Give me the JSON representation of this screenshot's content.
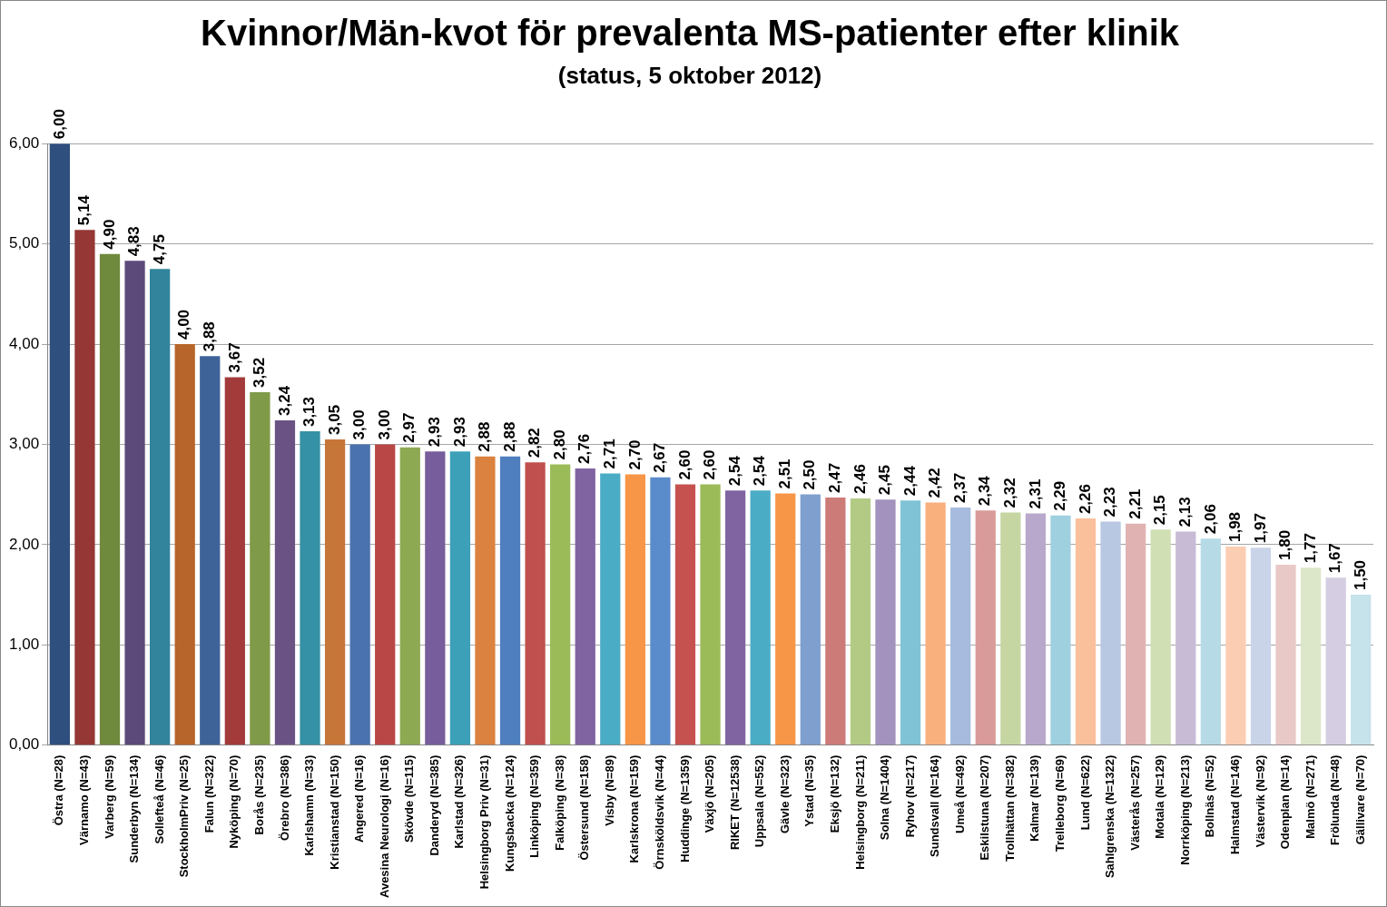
{
  "chart_data": {
    "type": "bar",
    "title": "Kvinnor/Män-kvot för prevalenta MS-patienter efter klinik",
    "subtitle": "(status, 5 oktober 2012)",
    "categories": [
      "Östra (N=28)",
      "Värnamo (N=43)",
      "Varberg (N=59)",
      "Sunderbyn (N=134)",
      "Sollefteå (N=46)",
      "StockholmPriv (N=25)",
      "Falun (N=322)",
      "Nyköping (N=70)",
      "Borås (N=235)",
      "Örebro (N=386)",
      "Karlshamn (N=33)",
      "Kristianstad (N=150)",
      "Angered (N=16)",
      "Avesina Neurologi (N=16)",
      "Skövde (N=115)",
      "Danderyd (N=385)",
      "Karlstad (N=326)",
      "Helsingborg Priv (N=31)",
      "Kungsbacka (N=124)",
      "Linköping (N=359)",
      "Falköping (N=38)",
      "Östersund (N=158)",
      "Visby (N=89)",
      "Karlskrona (N=159)",
      "Örnsköldsvik (N=44)",
      "Huddinge (N=1359)",
      "Växjö (N=205)",
      "RIKET (N=12538)",
      "Uppsala (N=552)",
      "Gävle (N=323)",
      "Ystad (N=35)",
      "Eksjö (N=132)",
      "Helsingborg (N=211)",
      "Solna (N=1404)",
      "Ryhov (N=217)",
      "Sundsvall (N=164)",
      "Umeå (N=492)",
      "Eskilstuna (N=207)",
      "Trollhättan (N=382)",
      "Kalmar (N=139)",
      "Trelleborg (N=69)",
      "Lund (N=622)",
      "Sahlgrenska (N=1322)",
      "Västerås (N=257)",
      "Motala (N=129)",
      "Norrköping (N=213)",
      "Bollnäs (N=52)",
      "Halmstad (N=146)",
      "Västervik (N=92)",
      "Odenplan (N=14)",
      "Malmö (N=271)",
      "Frölunda (N=48)",
      "Gällivare (N=70)"
    ],
    "values": [
      6.0,
      5.14,
      4.9,
      4.83,
      4.75,
      4.0,
      3.88,
      3.67,
      3.52,
      3.24,
      3.13,
      3.05,
      3.0,
      3.0,
      2.97,
      2.93,
      2.93,
      2.88,
      2.88,
      2.82,
      2.8,
      2.76,
      2.71,
      2.7,
      2.67,
      2.6,
      2.6,
      2.54,
      2.54,
      2.51,
      2.5,
      2.47,
      2.46,
      2.45,
      2.44,
      2.42,
      2.37,
      2.34,
      2.32,
      2.31,
      2.29,
      2.26,
      2.23,
      2.21,
      2.15,
      2.13,
      2.06,
      1.98,
      1.97,
      1.8,
      1.77,
      1.67,
      1.5
    ],
    "value_labels": [
      "6,00",
      "5,14",
      "4,90",
      "4,83",
      "4,75",
      "4,00",
      "3,88",
      "3,67",
      "3,52",
      "3,24",
      "3,13",
      "3,05",
      "3,00",
      "3,00",
      "2,97",
      "2,93",
      "2,93",
      "2,88",
      "2,88",
      "2,82",
      "2,80",
      "2,76",
      "2,71",
      "2,70",
      "2,67",
      "2,60",
      "2,60",
      "2,54",
      "2,54",
      "2,51",
      "2,50",
      "2,47",
      "2,46",
      "2,45",
      "2,44",
      "2,42",
      "2,37",
      "2,34",
      "2,32",
      "2,31",
      "2,29",
      "2,26",
      "2,23",
      "2,21",
      "2,15",
      "2,13",
      "2,06",
      "1,98",
      "1,97",
      "1,80",
      "1,77",
      "1,67",
      "1,50"
    ],
    "colors": [
      "#2F4F7F",
      "#953735",
      "#6F8A3C",
      "#5C4A7A",
      "#31849B",
      "#B7652A",
      "#3E6398",
      "#A23B3A",
      "#7F9A48",
      "#6A5285",
      "#3591A6",
      "#C7763A",
      "#4A72AE",
      "#B94746",
      "#8DAA53",
      "#775D9B",
      "#3CA0B8",
      "#DB8241",
      "#4F7FBF",
      "#C0504D",
      "#9BBB59",
      "#8064A2",
      "#4BACC6",
      "#F79646",
      "#5A8BCB",
      "#C5524F",
      "#9BBB59",
      "#8064A2",
      "#4BACC6",
      "#F79646",
      "#7F9FCE",
      "#CD7B79",
      "#B3CA85",
      "#A392BD",
      "#80C3D6",
      "#F9B07D",
      "#A6BBDD",
      "#D89B9A",
      "#C5D6A3",
      "#B8A9CC",
      "#9FD0DF",
      "#FAC09B",
      "#B8C8E2",
      "#E0B3B2",
      "#D1DFB5",
      "#C7BBD6",
      "#B6DBE6",
      "#FBCEB3",
      "#C9D4E8",
      "#E8C9C8",
      "#DCE6C8",
      "#D5CDE2",
      "#C6E2EA"
    ],
    "ylim": [
      0,
      6
    ],
    "yticks": [
      {
        "value": 0,
        "label": "0,00"
      },
      {
        "value": 1,
        "label": "1,00"
      },
      {
        "value": 2,
        "label": "2,00"
      },
      {
        "value": 3,
        "label": "3,00"
      },
      {
        "value": 4,
        "label": "4,00"
      },
      {
        "value": 5,
        "label": "5,00"
      },
      {
        "value": 6,
        "label": "6,00"
      }
    ],
    "grid": true,
    "data_labels": true
  }
}
